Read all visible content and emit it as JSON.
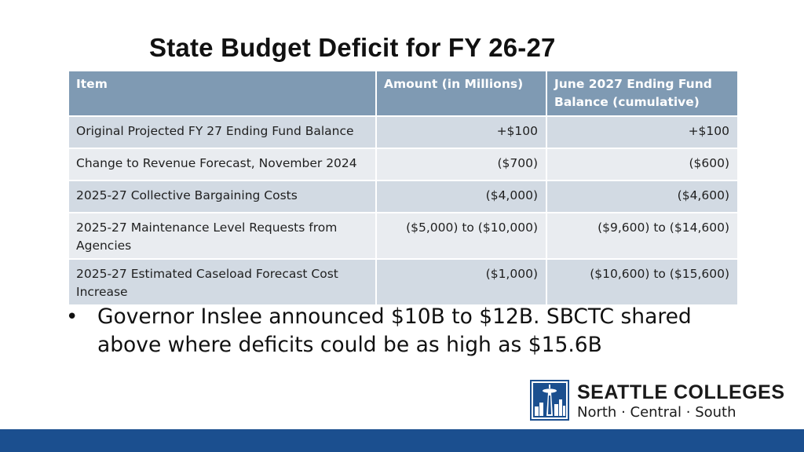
{
  "title": "State Budget Deficit for FY 26-27",
  "table": {
    "headers": [
      "Item",
      "Amount (in Millions)",
      "June 2027 Ending Fund Balance (cumulative)"
    ],
    "rows": [
      {
        "item": "Original Projected FY 27 Ending Fund Balance",
        "amount": "+$100",
        "balance": "+$100"
      },
      {
        "item": "Change to Revenue Forecast, November 2024",
        "amount": "($700)",
        "balance": "($600)"
      },
      {
        "item": "2025-27 Collective Bargaining Costs",
        "amount": "($4,000)",
        "balance": "($4,600)"
      },
      {
        "item": "2025-27 Maintenance Level Requests from Agencies",
        "amount": "($5,000) to ($10,000)",
        "balance": "($9,600) to ($14,600)"
      },
      {
        "item": "2025-27 Estimated Caseload Forecast Cost Increase",
        "amount": "($1,000)",
        "balance": "($10,600) to ($15,600)"
      }
    ]
  },
  "bullet": {
    "marker": "•",
    "text": "Governor Inslee announced $10B to $12B.  SBCTC shared above where deficits could be as high as $15.6B"
  },
  "logo": {
    "icon": "space-needle-icon",
    "name": "SEATTLE COLLEGES",
    "subtitle": "North · Central · South"
  },
  "colors": {
    "header_bg": "#7f9ab3",
    "row_odd": "#d2dae3",
    "row_even": "#e9ecf0",
    "brand_blue": "#1b4f8f"
  }
}
